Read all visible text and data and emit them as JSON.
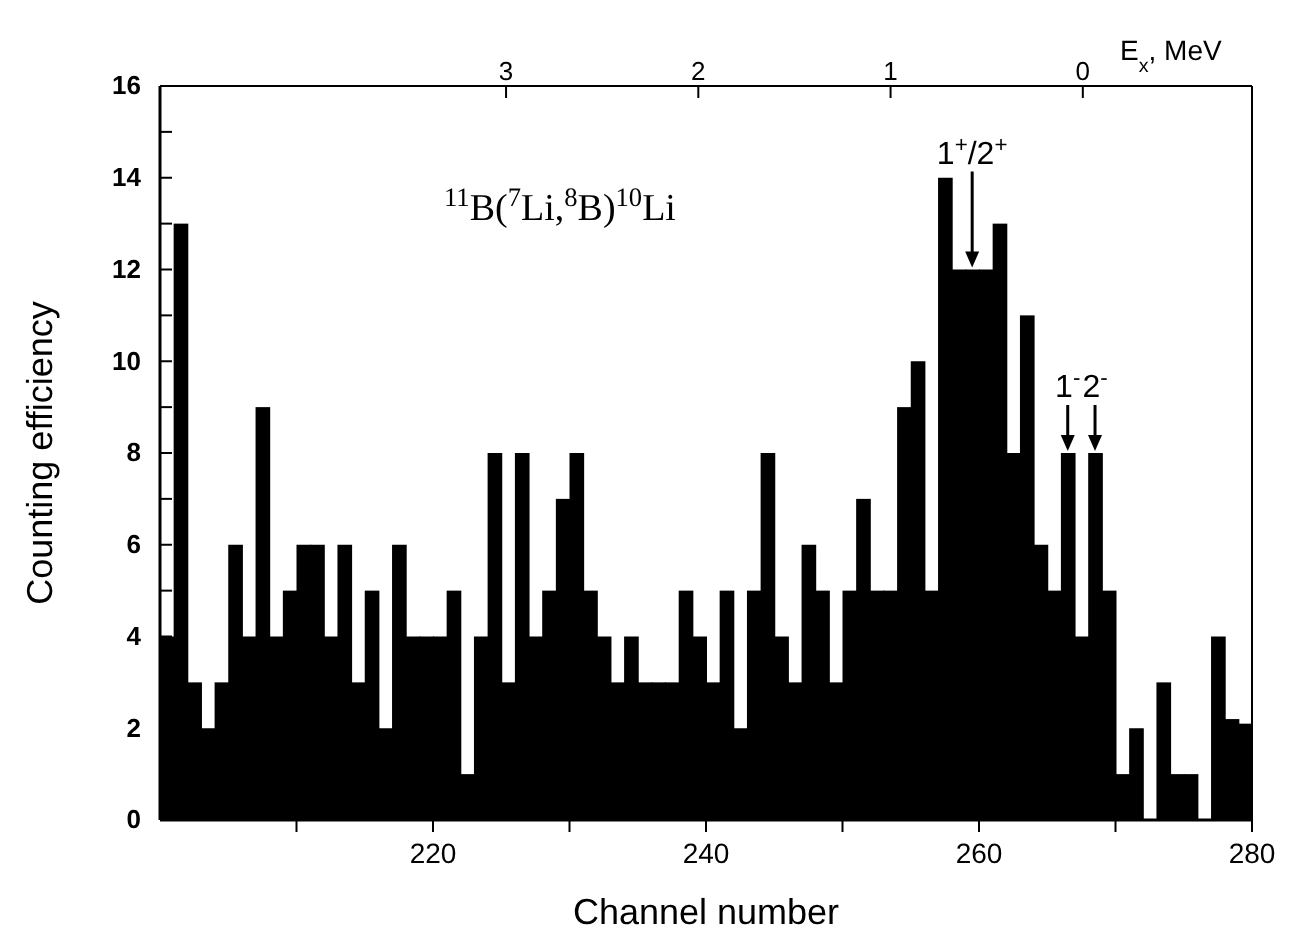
{
  "chart_data": {
    "type": "histogram",
    "xlabel": "Channel number",
    "ylabel": "Counting efficiency",
    "x2label": "E$_{x}$, MeV",
    "bins": [
      200,
      201,
      202,
      203,
      204,
      205,
      206,
      207,
      208,
      209,
      210,
      211,
      212,
      213,
      214,
      215,
      216,
      217,
      218,
      219,
      220,
      221,
      222,
      223,
      224,
      225,
      226,
      227,
      228,
      229,
      230,
      231,
      232,
      233,
      234,
      235,
      236,
      237,
      238,
      239,
      240,
      241,
      242,
      243,
      244,
      245,
      246,
      247,
      248,
      249,
      250,
      251,
      252,
      253,
      254,
      255,
      256,
      257,
      258,
      259,
      260,
      261,
      262,
      263,
      264,
      265,
      266,
      267,
      268,
      269,
      270,
      271,
      272,
      273,
      274,
      275,
      276,
      277,
      278,
      279,
      280
    ],
    "values": [
      4,
      13,
      3,
      2,
      3,
      6,
      4,
      9,
      4,
      5,
      6,
      6,
      4,
      6,
      3,
      5,
      2,
      6,
      4,
      4,
      4,
      5,
      1,
      4,
      8,
      3,
      8,
      4,
      5,
      7,
      8,
      5,
      4,
      3,
      4,
      3,
      3,
      3,
      5,
      4,
      3,
      5,
      2,
      5,
      8,
      4,
      3,
      6,
      5,
      3,
      5,
      7,
      5,
      5,
      9,
      10,
      5,
      14,
      12,
      12,
      12,
      13,
      8,
      11,
      6,
      5,
      8,
      4,
      8,
      5,
      1,
      2,
      0,
      3,
      1,
      1,
      0,
      4,
      2.2,
      2.1
    ],
    "color": "#000000",
    "xlim": [
      200,
      280
    ],
    "xticks": [
      {
        "value": 210,
        "label": null
      },
      220,
      {
        "value": 230,
        "label": null
      },
      240,
      {
        "value": 250,
        "label": null
      },
      260,
      {
        "value": 270,
        "label": null
      },
      280
    ],
    "ylim": [
      0,
      16
    ],
    "yticks": [
      0,
      {
        "value": 1,
        "label": null
      },
      2,
      {
        "value": 3,
        "label": null
      },
      4,
      {
        "value": 5,
        "label": null
      },
      6,
      {
        "value": 7,
        "label": null
      },
      8,
      {
        "value": 9,
        "label": null
      },
      10,
      {
        "value": 11,
        "label": null
      },
      12,
      {
        "value": 13,
        "label": null
      },
      14,
      {
        "value": 15,
        "label": null
      },
      16
    ],
    "x2lim": [
      4.8,
      -0.88
    ],
    "x2ticks": [
      3,
      2,
      1,
      0
    ],
    "annotations": [
      "$^{11}$B($^{7}$Li,$^{8}$B)$^{10}$Li",
      {
        "text": "1$^{+}$/2$^{+}$",
        "x": 259.5,
        "y": 12
      },
      {
        "text": "1$^{-}$",
        "x": 266.5,
        "y": 8
      },
      {
        "text": "2$^{-}$",
        "x": 268.5,
        "y": 8
      }
    ],
    "grid": false
  }
}
